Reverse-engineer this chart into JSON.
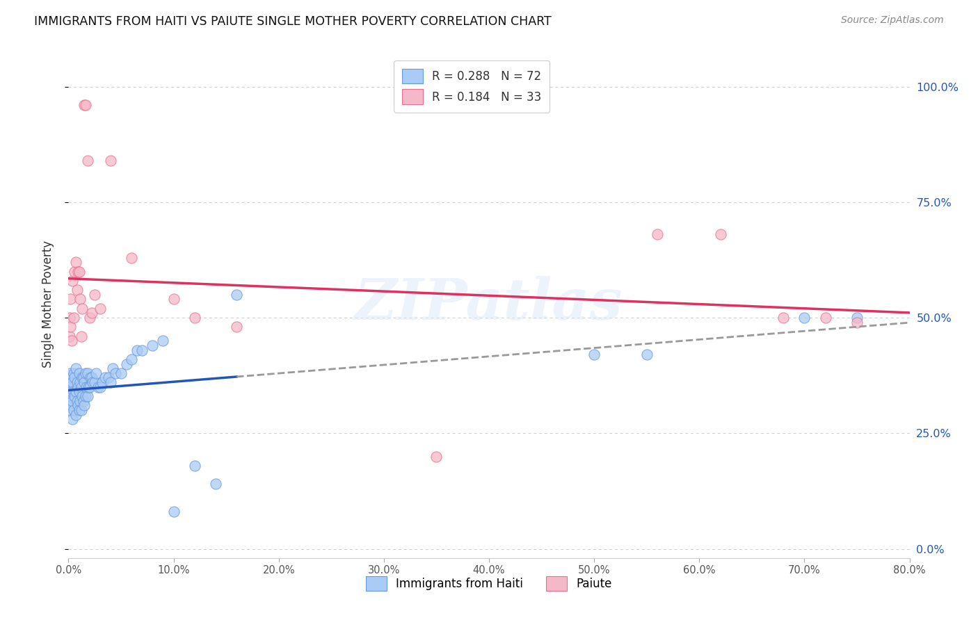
{
  "title": "IMMIGRANTS FROM HAITI VS PAIUTE SINGLE MOTHER POVERTY CORRELATION CHART",
  "source": "Source: ZipAtlas.com",
  "xlabel_ticks": [
    "0.0%",
    "10.0%",
    "20.0%",
    "30.0%",
    "40.0%",
    "50.0%",
    "60.0%",
    "70.0%",
    "80.0%"
  ],
  "ylabel_ticks": [
    "0.0%",
    "25.0%",
    "50.0%",
    "75.0%",
    "100.0%"
  ],
  "xlim": [
    0.0,
    0.8
  ],
  "ylim": [
    -0.02,
    1.08
  ],
  "watermark": "ZIPatlas",
  "legend_r1": "0.288",
  "legend_n1": "72",
  "legend_r2": "0.184",
  "legend_n2": "33",
  "haiti_color": "#aacbf5",
  "haiti_edge": "#6699dd",
  "paiute_color": "#f5b8c8",
  "paiute_edge": "#e8708a",
  "haiti_line_color": "#2255bb",
  "paiute_line_color": "#e03060",
  "legend_color_r": "#1155cc",
  "legend_color_n": "#1155cc",
  "haiti_scatter_x": [
    0.001,
    0.001,
    0.001,
    0.002,
    0.002,
    0.002,
    0.003,
    0.003,
    0.003,
    0.004,
    0.004,
    0.004,
    0.005,
    0.005,
    0.005,
    0.006,
    0.006,
    0.007,
    0.007,
    0.007,
    0.008,
    0.008,
    0.009,
    0.009,
    0.01,
    0.01,
    0.01,
    0.011,
    0.011,
    0.012,
    0.012,
    0.013,
    0.013,
    0.014,
    0.014,
    0.015,
    0.015,
    0.016,
    0.016,
    0.017,
    0.018,
    0.018,
    0.019,
    0.02,
    0.021,
    0.022,
    0.023,
    0.025,
    0.026,
    0.028,
    0.03,
    0.032,
    0.035,
    0.038,
    0.04,
    0.042,
    0.045,
    0.05,
    0.055,
    0.06,
    0.065,
    0.07,
    0.08,
    0.09,
    0.1,
    0.12,
    0.14,
    0.16,
    0.5,
    0.55,
    0.7,
    0.75
  ],
  "haiti_scatter_y": [
    0.32,
    0.35,
    0.36,
    0.3,
    0.33,
    0.38,
    0.31,
    0.34,
    0.37,
    0.28,
    0.32,
    0.36,
    0.3,
    0.34,
    0.38,
    0.33,
    0.37,
    0.29,
    0.34,
    0.39,
    0.32,
    0.36,
    0.31,
    0.35,
    0.3,
    0.34,
    0.38,
    0.32,
    0.36,
    0.3,
    0.35,
    0.33,
    0.37,
    0.32,
    0.37,
    0.31,
    0.36,
    0.33,
    0.38,
    0.35,
    0.33,
    0.38,
    0.35,
    0.35,
    0.37,
    0.37,
    0.36,
    0.36,
    0.38,
    0.35,
    0.35,
    0.36,
    0.37,
    0.37,
    0.36,
    0.39,
    0.38,
    0.38,
    0.4,
    0.41,
    0.43,
    0.43,
    0.44,
    0.45,
    0.08,
    0.18,
    0.14,
    0.55,
    0.42,
    0.42,
    0.5,
    0.5
  ],
  "paiute_scatter_x": [
    0.001,
    0.001,
    0.002,
    0.002,
    0.003,
    0.004,
    0.005,
    0.006,
    0.007,
    0.008,
    0.009,
    0.01,
    0.011,
    0.012,
    0.013,
    0.015,
    0.016,
    0.018,
    0.02,
    0.022,
    0.025,
    0.03,
    0.04,
    0.06,
    0.1,
    0.12,
    0.16,
    0.56,
    0.62,
    0.68,
    0.72,
    0.75,
    0.35
  ],
  "paiute_scatter_y": [
    0.46,
    0.5,
    0.48,
    0.54,
    0.45,
    0.58,
    0.5,
    0.6,
    0.62,
    0.56,
    0.6,
    0.6,
    0.54,
    0.46,
    0.52,
    0.96,
    0.96,
    0.84,
    0.5,
    0.51,
    0.55,
    0.52,
    0.84,
    0.63,
    0.54,
    0.5,
    0.48,
    0.68,
    0.68,
    0.5,
    0.5,
    0.49,
    0.2
  ]
}
